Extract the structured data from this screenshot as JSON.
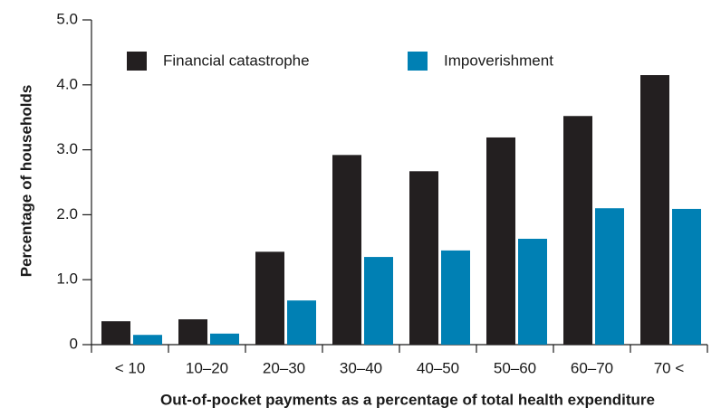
{
  "chart_data": {
    "type": "bar",
    "categories": [
      "< 10",
      "10–20",
      "20–30",
      "30–40",
      "40–50",
      "50–60",
      "60–70",
      "70 <"
    ],
    "series": [
      {
        "name": "Financial catastrophe",
        "color": "#231f20",
        "values": [
          0.36,
          0.39,
          1.43,
          2.92,
          2.67,
          3.19,
          3.52,
          4.15
        ]
      },
      {
        "name": "Impoverishment",
        "color": "#0080b4",
        "values": [
          0.15,
          0.17,
          0.68,
          1.35,
          1.45,
          1.63,
          2.1,
          2.09
        ]
      }
    ],
    "ylim": [
      0,
      5
    ],
    "yticks": [
      0,
      {
        "value": 1,
        "label": "1.0"
      },
      {
        "value": 2,
        "label": "2.0"
      },
      {
        "value": 3,
        "label": "3.0"
      },
      {
        "value": 4,
        "label": "4.0"
      },
      {
        "value": 5,
        "label": "5.0"
      }
    ],
    "y_label": "Percentage of households",
    "x_label": "Out-of-pocket payments as a percentage of total health expenditure"
  }
}
